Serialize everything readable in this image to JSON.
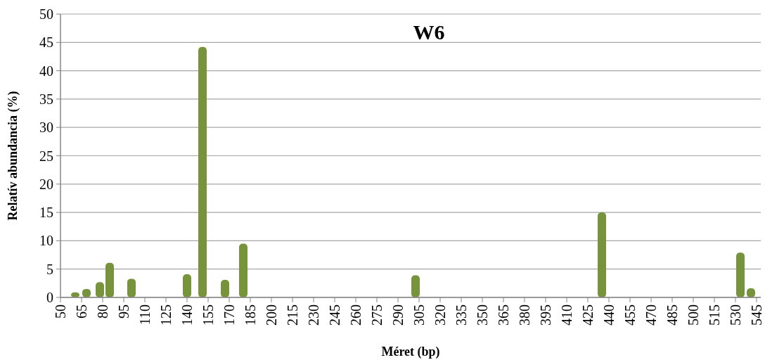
{
  "chart_data": {
    "type": "bar",
    "title": "W6",
    "xlabel": "Méret (bp)",
    "ylabel": "Relatív abundancia (%)",
    "x": [
      60.5,
      68.5,
      78,
      85,
      100.5,
      140,
      151,
      167,
      180,
      302.5,
      435,
      533.5,
      541
    ],
    "values": [
      0.9,
      1.5,
      2.7,
      6.1,
      3.3,
      4.1,
      44.2,
      3.1,
      9.5,
      3.9,
      15,
      7.9,
      1.6
    ],
    "color": "#77933c",
    "xlim": [
      50,
      548
    ],
    "xticks": [
      50,
      65,
      80,
      95,
      110,
      125,
      140,
      155,
      170,
      185,
      200,
      215,
      230,
      245,
      260,
      275,
      290,
      305,
      320,
      335,
      350,
      365,
      380,
      395,
      410,
      425,
      440,
      455,
      470,
      485,
      500,
      515,
      530,
      545
    ],
    "ylim": [
      0,
      50
    ],
    "yticks": [
      0,
      5,
      10,
      15,
      20,
      25,
      30,
      35,
      40,
      45,
      50
    ],
    "grid": "y"
  }
}
